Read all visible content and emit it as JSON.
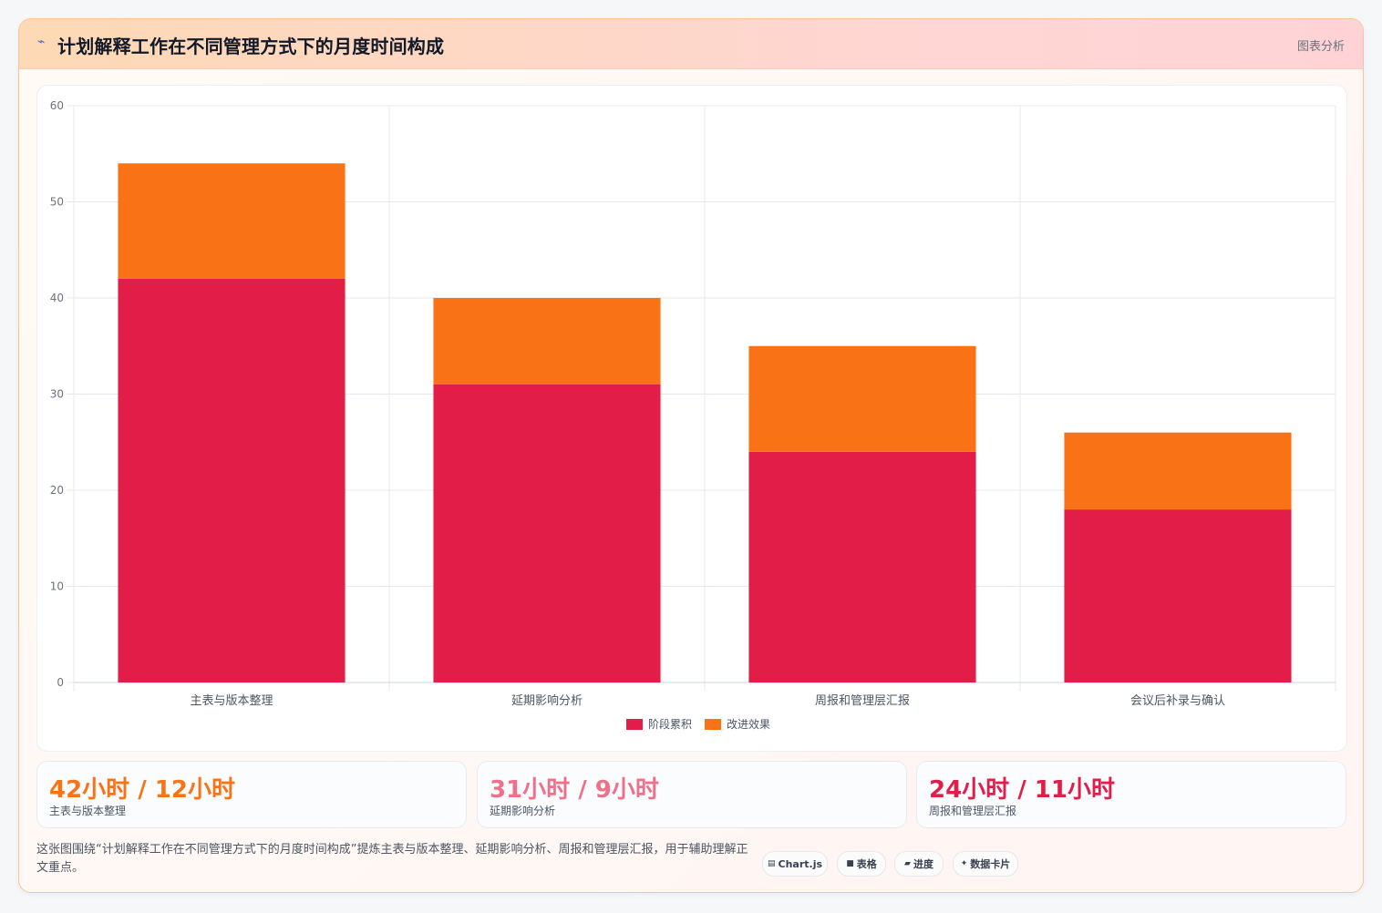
{
  "header": {
    "title": "计划解释工作在不同管理方式下的月度时间构成",
    "link_label": "图表分析"
  },
  "chart_data": {
    "type": "bar",
    "stacked": true,
    "categories": [
      "主表与版本整理",
      "延期影响分析",
      "周报和管理层汇报",
      "会议后补录与确认"
    ],
    "series": [
      {
        "name": "阶段累积",
        "values": [
          42,
          31,
          24,
          18
        ],
        "color": "#e11d48"
      },
      {
        "name": "改进效果",
        "values": [
          12,
          9,
          11,
          8
        ],
        "color": "#f97316"
      }
    ],
    "ylim": [
      0,
      60
    ],
    "yticks": [
      0,
      10,
      20,
      30,
      40,
      50,
      60
    ],
    "grid": true,
    "legend_position": "bottom"
  },
  "stats": [
    {
      "value": "42小时 / 12小时",
      "label": "主表与版本整理",
      "color": "#f97316"
    },
    {
      "value": "31小时 / 9小时",
      "label": "延期影响分析",
      "color": "#f0708a"
    },
    {
      "value": "24小时 / 11小时",
      "label": "周报和管理层汇报",
      "color": "#e11d48"
    }
  ],
  "description": "这张图围绕“计划解释工作在不同管理方式下的月度时间构成”提炼主表与版本整理、延期影响分析、周报和管理层汇报，用于辅助理解正文重点。",
  "chips": [
    {
      "icon": "▤",
      "icon_name": "chart-icon",
      "label": "Chart.js"
    },
    {
      "icon": "■",
      "icon_name": "table-icon",
      "label": "表格"
    },
    {
      "icon": "▰",
      "icon_name": "progress-icon",
      "label": "进度"
    },
    {
      "icon": "✦",
      "icon_name": "sparkle-icon",
      "label": "数据卡片"
    }
  ]
}
